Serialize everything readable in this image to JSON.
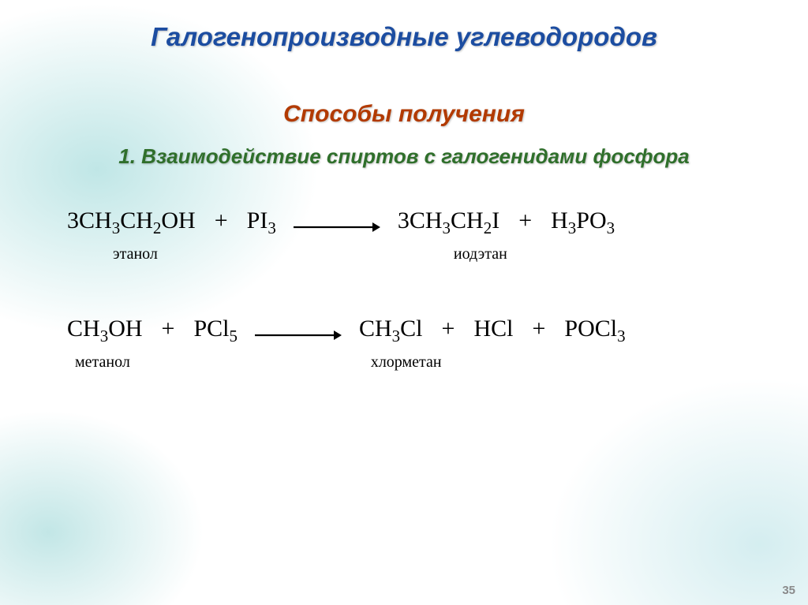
{
  "colors": {
    "title": "#1c4da1",
    "subtitle": "#b23a00",
    "section": "#2f6f2b",
    "text": "#000000",
    "arrow": "#000000",
    "pagenum": "#8a8a8a"
  },
  "fontsizes": {
    "title": 33,
    "subtitle": 30,
    "section": 26,
    "formula": 30,
    "label": 20,
    "pagenum": 15
  },
  "title": "Галогенопроизводные углеводородов",
  "subtitle": "Способы получения",
  "section": "1. Взаимодействие спиртов с галогенидами фосфора",
  "reaction1": {
    "lhs1": "3CH₃CH₂OH",
    "plus": "+",
    "lhs2": "PI₃",
    "rhs1": "3CH₃CH₂I",
    "rhs2": "H₃PO₃",
    "label_lhs1": "этанол",
    "label_rhs1": "иодэтан"
  },
  "reaction2": {
    "lhs1": "CH₃OH",
    "plus": "+",
    "lhs2": "PCl₅",
    "rhs1": "CH₃Cl",
    "rhs2": "HCl",
    "rhs3": "POCl₃",
    "label_lhs1": "метанол",
    "label_rhs1": "хлорметан"
  },
  "pagenum": "35"
}
